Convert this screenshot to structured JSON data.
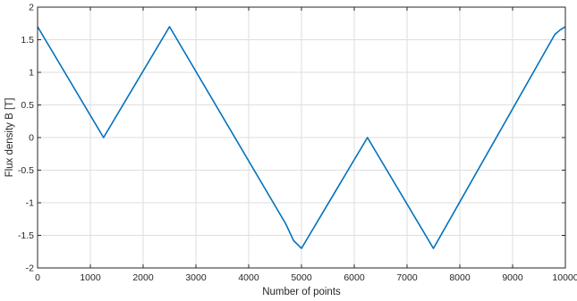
{
  "chart_data": {
    "type": "line",
    "title": "",
    "xlabel": "Number of points",
    "ylabel": "Flux density B [T]",
    "xlim": [
      0,
      10000
    ],
    "ylim": [
      -2,
      2
    ],
    "grid": true,
    "x_ticks": [
      0,
      1000,
      2000,
      3000,
      4000,
      5000,
      6000,
      7000,
      8000,
      9000,
      10000
    ],
    "x_tick_labels": [
      "0",
      "1000",
      "2000",
      "3000",
      "4000",
      "5000",
      "6000",
      "7000",
      "8000",
      "9000",
      "10000"
    ],
    "y_ticks": [
      2,
      1.5,
      1,
      0.5,
      0,
      -0.5,
      -1,
      -1.5,
      -2
    ],
    "y_tick_labels": [
      "2",
      "1.5",
      "1",
      "0.5",
      "0",
      "-0.5",
      "-1",
      "-1.5",
      "-2"
    ],
    "series": [
      {
        "color": "#0072BD",
        "x": [
          0,
          1250,
          2500,
          4700,
          4850,
          5000,
          6250,
          7500,
          9800,
          9900,
          10000
        ],
        "y": [
          1.7,
          0,
          1.7,
          -1.32,
          -1.58,
          -1.7,
          0,
          -1.7,
          1.58,
          1.65,
          1.7
        ]
      }
    ]
  }
}
